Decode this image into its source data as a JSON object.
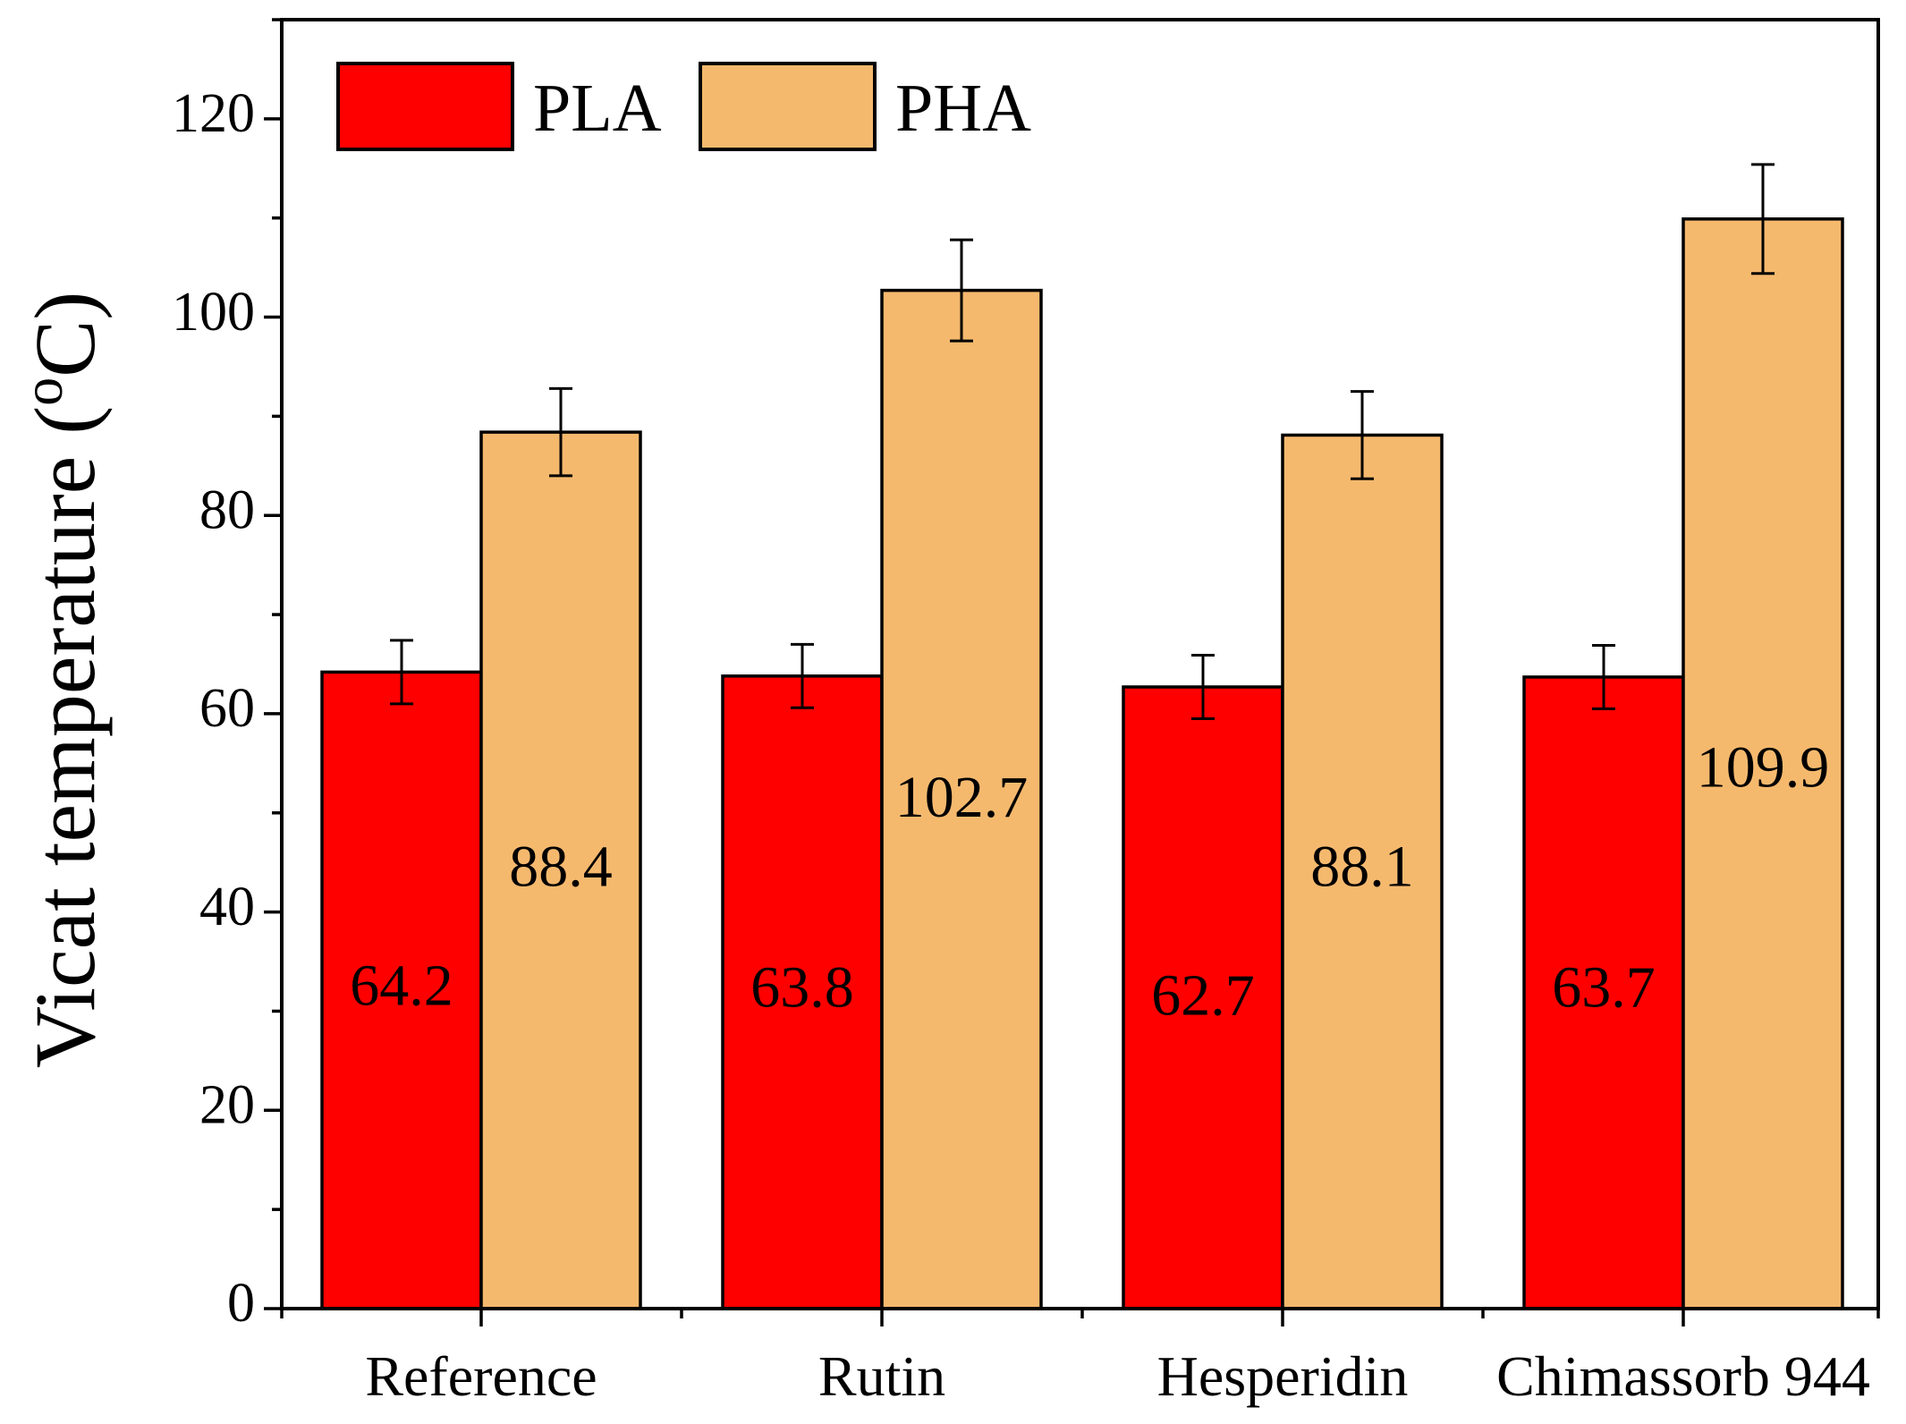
{
  "chart_data": {
    "type": "bar",
    "title": "",
    "xlabel": "",
    "ylabel": "Vicat temperature (",
    "ylabel_superscript": "o",
    "ylabel_suffix": "C)",
    "categories": [
      "Reference",
      "Rutin",
      "Hesperidin",
      "Chimassorb 944"
    ],
    "series": [
      {
        "name": "PLA",
        "color": "#ff0000",
        "values": [
          64.2,
          63.8,
          62.7,
          63.7
        ],
        "errors": [
          3.2,
          3.2,
          3.2,
          3.2
        ],
        "labels": [
          "64.2",
          "63.8",
          "62.7",
          "63.7"
        ],
        "label_values": [
          32,
          31.8,
          31,
          31.8
        ]
      },
      {
        "name": "PHA",
        "color": "#f5b96e",
        "values": [
          88.4,
          102.7,
          88.1,
          109.9
        ],
        "errors": [
          4.4,
          5.1,
          4.4,
          5.5
        ],
        "labels": [
          "88.4",
          "102.7",
          "88.1",
          "109.9"
        ],
        "label_values": [
          44,
          51,
          44,
          54
        ]
      }
    ],
    "ylim": [
      0,
      130
    ],
    "yticks": [
      0,
      20,
      40,
      60,
      80,
      100,
      120
    ],
    "ytick_labels": [
      "0",
      "20",
      "40",
      "60",
      "80",
      "100",
      "120"
    ],
    "y_minor_step": 10,
    "legend_position": "top-left",
    "grid": false
  }
}
